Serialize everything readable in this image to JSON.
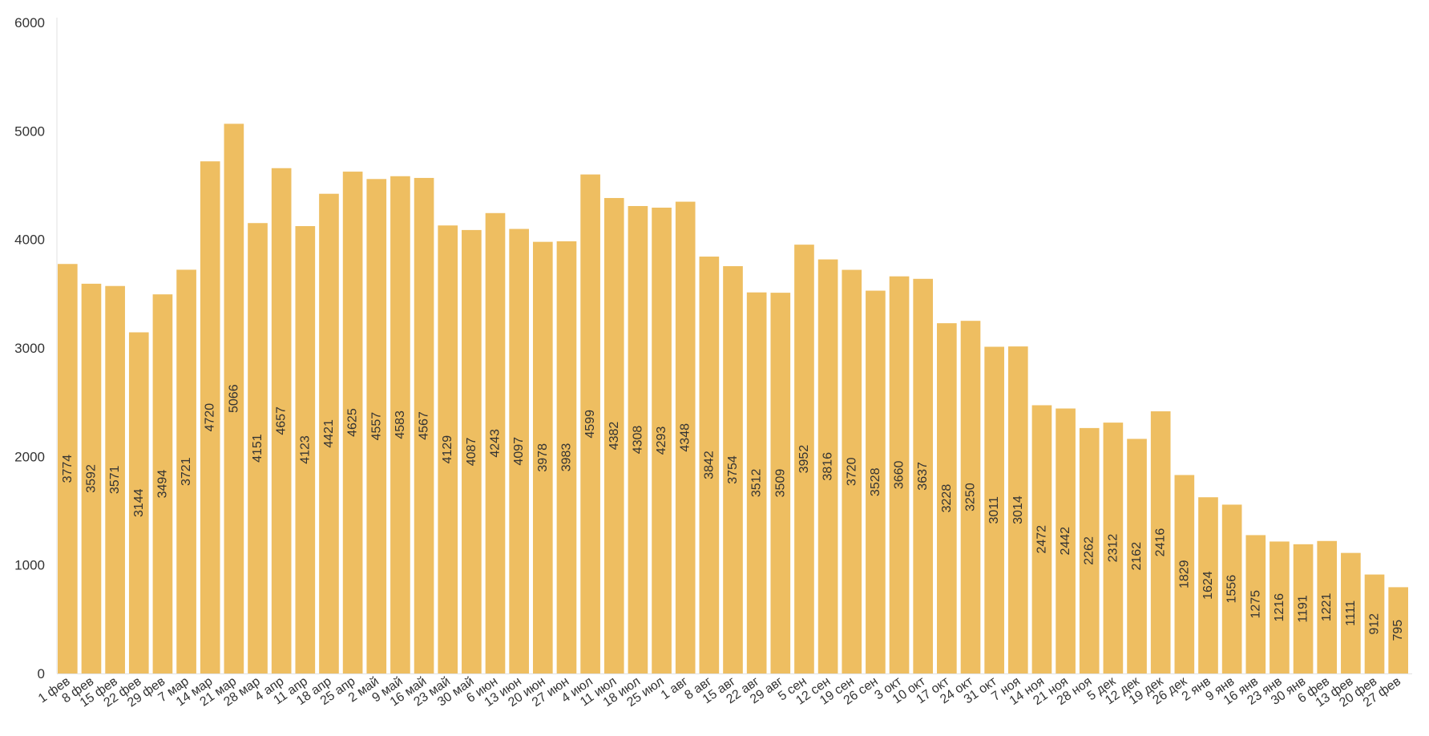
{
  "chart_data": {
    "type": "bar",
    "bar_color": "#EEBE61",
    "axis_color": "#E2E2E2",
    "text_color": "#333333",
    "grid": false,
    "ylim": [
      0,
      6000
    ],
    "yticks": [
      0,
      1000,
      2000,
      3000,
      4000,
      5000,
      6000
    ],
    "categories": [
      "1 фев",
      "8 фев",
      "15 фев",
      "22 фев",
      "29 фев",
      "7 мар",
      "14 мар",
      "21 мар",
      "28 мар",
      "4 апр",
      "11 апр",
      "18 апр",
      "25 апр",
      "2 май",
      "9 май",
      "16 май",
      "23 май",
      "30 май",
      "6 июн",
      "13 июн",
      "20 июн",
      "27 июн",
      "4 июл",
      "11 июл",
      "18 июл",
      "25 июл",
      "1 авг",
      "8 авг",
      "15 авг",
      "22 авг",
      "29 авг",
      "5 сен",
      "12 сен",
      "19 сен",
      "26 сен",
      "3 окт",
      "10 окт",
      "17 окт",
      "24 окт",
      "31 окт",
      "7 ноя",
      "14 ноя",
      "21 ноя",
      "28 ноя",
      "5 дек",
      "12 дек",
      "19 дек",
      "26 дек",
      "2 янв",
      "9 янв",
      "16 янв",
      "23 янв",
      "30 янв",
      "6 фев",
      "13 фев",
      "20 фев",
      "27 фев"
    ],
    "values": [
      3774,
      3592,
      3571,
      3144,
      3494,
      3721,
      4720,
      5066,
      4151,
      4657,
      4123,
      4421,
      4625,
      4557,
      4583,
      4567,
      4129,
      4087,
      4243,
      4097,
      3978,
      3983,
      4599,
      4382,
      4308,
      4293,
      4348,
      3842,
      3754,
      3512,
      3509,
      3952,
      3816,
      3720,
      3528,
      3660,
      3637,
      3228,
      3250,
      3011,
      3014,
      2472,
      2442,
      2262,
      2312,
      2162,
      2416,
      1829,
      1624,
      1556,
      1275,
      1216,
      1191,
      1221,
      1111,
      912,
      795
    ]
  }
}
